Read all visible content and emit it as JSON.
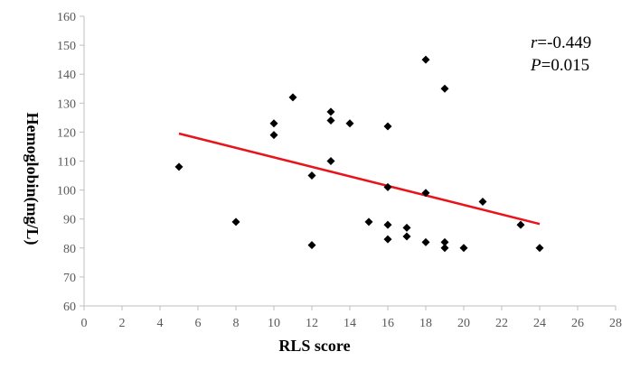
{
  "chart_data": {
    "type": "scatter",
    "title": "",
    "xlabel": "RLS score",
    "ylabel": "Hemoglobin(mg/L)",
    "xlim": [
      0,
      28
    ],
    "ylim": [
      60,
      160
    ],
    "xticks": [
      "0",
      "2",
      "4",
      "6",
      "8",
      "10",
      "12",
      "14",
      "16",
      "18",
      "20",
      "22",
      "24",
      "26",
      "28"
    ],
    "yticks": [
      "60",
      "70",
      "80",
      "90",
      "100",
      "110",
      "120",
      "130",
      "140",
      "150",
      "160"
    ],
    "grid": false,
    "marker": "diamond",
    "marker_color": "#000000",
    "trendline_color": "#e8141a",
    "points": [
      {
        "x": 5,
        "y": 108
      },
      {
        "x": 8,
        "y": 89
      },
      {
        "x": 10,
        "y": 123
      },
      {
        "x": 10,
        "y": 119
      },
      {
        "x": 11,
        "y": 132
      },
      {
        "x": 12,
        "y": 105
      },
      {
        "x": 12,
        "y": 81
      },
      {
        "x": 13,
        "y": 127
      },
      {
        "x": 13,
        "y": 124
      },
      {
        "x": 13,
        "y": 110
      },
      {
        "x": 14,
        "y": 123
      },
      {
        "x": 15,
        "y": 89
      },
      {
        "x": 16,
        "y": 122
      },
      {
        "x": 16,
        "y": 101
      },
      {
        "x": 16,
        "y": 88
      },
      {
        "x": 16,
        "y": 83
      },
      {
        "x": 17,
        "y": 87
      },
      {
        "x": 17,
        "y": 84
      },
      {
        "x": 18,
        "y": 145
      },
      {
        "x": 18,
        "y": 99
      },
      {
        "x": 18,
        "y": 82
      },
      {
        "x": 19,
        "y": 135
      },
      {
        "x": 19,
        "y": 82
      },
      {
        "x": 19,
        "y": 80
      },
      {
        "x": 20,
        "y": 80
      },
      {
        "x": 21,
        "y": 96
      },
      {
        "x": 23,
        "y": 88
      },
      {
        "x": 24,
        "y": 80
      }
    ],
    "trendline": {
      "x": [
        5,
        24
      ],
      "y": [
        119.5,
        88.3
      ]
    },
    "annotations": {
      "r_symbol": "r",
      "r_value": "=-0.449",
      "p_symbol": "P",
      "p_value": "=0.015"
    }
  }
}
